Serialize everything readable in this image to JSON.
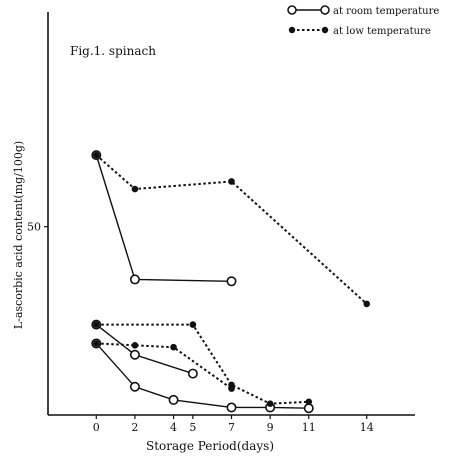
{
  "chart_data": {
    "type": "line",
    "title": "Fig.1. spinach",
    "xlabel": "Storage Period(days)",
    "ylabel": "L-ascorbic acid content(mg/100g)",
    "x_ticks": [
      0,
      2,
      4,
      5,
      7,
      9,
      11,
      14
    ],
    "y_ticks": [
      50
    ],
    "xlim": [
      -2.5,
      16.5
    ],
    "ylim": [
      0,
      107
    ],
    "legend_position": "top-right",
    "legend": [
      {
        "label": "at room temperature",
        "marker": "open",
        "line": "solid"
      },
      {
        "label": "at low temperature",
        "marker": "filled",
        "line": "dotted"
      }
    ],
    "series": [
      {
        "legend": 0,
        "x": [
          0,
          2,
          7
        ],
        "y": [
          69,
          36,
          35.5
        ]
      },
      {
        "legend": 0,
        "x": [
          0,
          2,
          5
        ],
        "y": [
          24,
          16,
          11
        ]
      },
      {
        "legend": 0,
        "x": [
          0,
          2,
          4,
          7,
          9,
          11
        ],
        "y": [
          19,
          7.5,
          4,
          2,
          2,
          1.8
        ]
      },
      {
        "legend": 1,
        "x": [
          0,
          2,
          7,
          14
        ],
        "y": [
          69,
          60,
          62,
          29.5
        ]
      },
      {
        "legend": 1,
        "x": [
          0,
          5,
          7,
          9,
          11
        ],
        "y": [
          24,
          24,
          8,
          3,
          3.5
        ]
      },
      {
        "legend": 1,
        "x": [
          0,
          2,
          4,
          7
        ],
        "y": [
          19,
          18.5,
          18,
          7
        ]
      }
    ]
  }
}
